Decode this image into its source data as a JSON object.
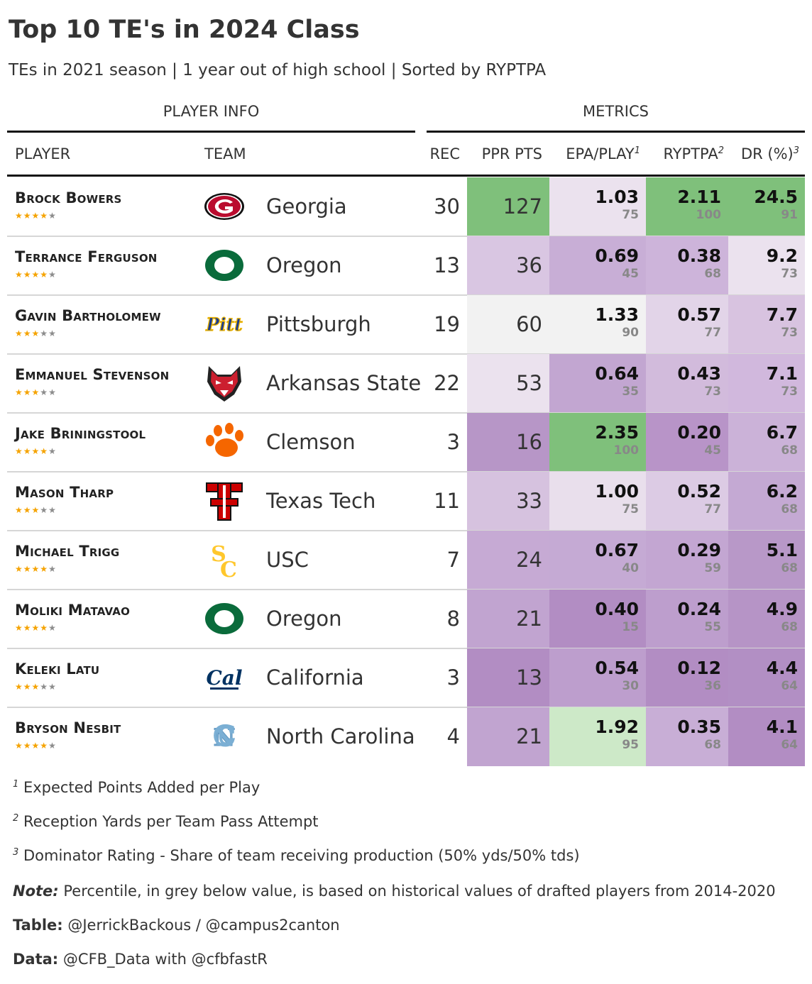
{
  "title": "Top 10 TE's in 2024 Class",
  "subtitle": "TEs in 2021 season | 1 year out of high school | Sorted by RYPTPA",
  "spanners": {
    "player_info": "PLAYER INFO",
    "metrics": "METRICS"
  },
  "columns": {
    "player": "PLAYER",
    "team": "TEAM",
    "rec": "REC",
    "ppr": "PPR PTS",
    "epa": "EPA/PLAY",
    "epa_sup": "1",
    "ryptpa": "RYPTPA",
    "ryptpa_sup": "2",
    "dr": "DR (%)",
    "dr_sup": "3"
  },
  "colors": {
    "scale": [
      "#b28dc3",
      "#d1b8dd",
      "#ebe2ee",
      "#f2f2f2",
      "#c9e8c4",
      "#7fc07b"
    ],
    "star_on": "#f5a300",
    "star_off": "#8c8c8c"
  },
  "chart_data": {
    "type": "table",
    "rows": [
      {
        "name": "Brock Bowers",
        "stars": 4,
        "logo": "georgia-g-logo",
        "team": "Georgia",
        "rec": 30,
        "ppr": 127,
        "ppr_bg": "#7fc07b",
        "epa": "1.03",
        "epa_pct": 75,
        "epa_bg": "#ebe2ee",
        "ryptpa": "2.11",
        "ryptpa_pct": 100,
        "ryptpa_bg": "#7fc07b",
        "dr": "24.5",
        "dr_pct": 91,
        "dr_bg": "#7fc07b"
      },
      {
        "name": "Terrance Ferguson",
        "stars": 4,
        "logo": "oregon-o-logo",
        "team": "Oregon",
        "rec": 13,
        "ppr": 36,
        "ppr_bg": "#d9c6e2",
        "epa": "0.69",
        "epa_pct": 45,
        "epa_bg": "#c8aed6",
        "ryptpa": "0.38",
        "ryptpa_pct": 68,
        "ryptpa_bg": "#cdb4da",
        "dr": "9.2",
        "dr_pct": 73,
        "dr_bg": "#ebe2ee"
      },
      {
        "name": "Gavin Bartholomew",
        "stars": 3,
        "logo": "pitt-logo",
        "team": "Pittsburgh",
        "rec": 19,
        "ppr": 60,
        "ppr_bg": "#f2f2f2",
        "epa": "1.33",
        "epa_pct": 90,
        "epa_bg": "#f2f2f2",
        "ryptpa": "0.57",
        "ryptpa_pct": 77,
        "ryptpa_bg": "#e2d4e8",
        "dr": "7.7",
        "dr_pct": 73,
        "dr_bg": "#d8c3e0"
      },
      {
        "name": "Emmanuel Stevenson",
        "stars": 3,
        "logo": "red-wolf-logo",
        "team": "Arkansas State",
        "rec": 22,
        "ppr": 53,
        "ppr_bg": "#ebe2ee",
        "epa": "0.64",
        "epa_pct": 35,
        "epa_bg": "#c2a6d1",
        "ryptpa": "0.43",
        "ryptpa_pct": 73,
        "ryptpa_bg": "#d2bbdc",
        "dr": "7.1",
        "dr_pct": 73,
        "dr_bg": "#d1b8dd"
      },
      {
        "name": "Jake Briningstool",
        "stars": 4,
        "logo": "clemson-paw-logo",
        "team": "Clemson",
        "rec": 3,
        "ppr": 16,
        "ppr_bg": "#b796c7",
        "epa": "2.35",
        "epa_pct": 100,
        "epa_bg": "#7fc07b",
        "ryptpa": "0.20",
        "ryptpa_pct": 45,
        "ryptpa_bg": "#b894c8",
        "dr": "6.7",
        "dr_pct": 68,
        "dr_bg": "#cbb2d8"
      },
      {
        "name": "Mason Tharp",
        "stars": 3,
        "logo": "texas-tech-logo",
        "team": "Texas Tech",
        "rec": 11,
        "ppr": 33,
        "ppr_bg": "#d6c2df",
        "epa": "1.00",
        "epa_pct": 75,
        "epa_bg": "#e9dfec",
        "ryptpa": "0.52",
        "ryptpa_pct": 77,
        "ryptpa_bg": "#dccbe4",
        "dr": "6.2",
        "dr_pct": 68,
        "dr_bg": "#c4a9d3"
      },
      {
        "name": "Michael Trigg",
        "stars": 4,
        "logo": "usc-logo",
        "team": "USC",
        "rec": 7,
        "ppr": 24,
        "ppr_bg": "#c6aad4",
        "epa": "0.67",
        "epa_pct": 40,
        "epa_bg": "#c5aad4",
        "ryptpa": "0.29",
        "ryptpa_pct": 59,
        "ryptpa_bg": "#c3a6d2",
        "dr": "5.1",
        "dr_pct": 68,
        "dr_bg": "#b898c8"
      },
      {
        "name": "Moliki Matavao",
        "stars": 4,
        "logo": "oregon-o-logo",
        "team": "Oregon",
        "rec": 8,
        "ppr": 21,
        "ppr_bg": "#c1a4d0",
        "epa": "0.40",
        "epa_pct": 15,
        "epa_bg": "#b28dc3",
        "ryptpa": "0.24",
        "ryptpa_pct": 55,
        "ryptpa_bg": "#bd9ecd",
        "dr": "4.9",
        "dr_pct": 68,
        "dr_bg": "#b694c6"
      },
      {
        "name": "Keleki Latu",
        "stars": 3,
        "logo": "cal-logo",
        "team": "California",
        "rec": 3,
        "ppr": 13,
        "ppr_bg": "#b28dc3",
        "epa": "0.54",
        "epa_pct": 30,
        "epa_bg": "#bd9ecd",
        "ryptpa": "0.12",
        "ryptpa_pct": 36,
        "ryptpa_bg": "#b28dc3",
        "dr": "4.4",
        "dr_pct": 64,
        "dr_bg": "#b28fc4"
      },
      {
        "name": "Bryson Nesbit",
        "stars": 4,
        "logo": "unc-logo",
        "team": "North Carolina",
        "rec": 4,
        "ppr": 21,
        "ppr_bg": "#c1a4d0",
        "epa": "1.92",
        "epa_pct": 95,
        "epa_bg": "#cde9c8",
        "ryptpa": "0.35",
        "ryptpa_pct": 68,
        "ryptpa_bg": "#c8aed6",
        "dr": "4.1",
        "dr_pct": 64,
        "dr_bg": "#b28dc3"
      }
    ]
  },
  "footnotes": {
    "f1_sup": "1",
    "f1": "Expected Points Added per Play",
    "f2_sup": "2",
    "f2": "Reception Yards per Team Pass Attempt",
    "f3_sup": "3",
    "f3": "Dominator Rating - Share of team receiving production (50% yds/50% tds)",
    "note_label": "Note:",
    "note": "Percentile, in grey below value, is based on historical values of drafted players from 2014-2020",
    "table_label": "Table:",
    "table": "@JerrickBackous / @campus2canton",
    "data_label": "Data:",
    "data": "@CFB_Data with @cfbfastR"
  }
}
